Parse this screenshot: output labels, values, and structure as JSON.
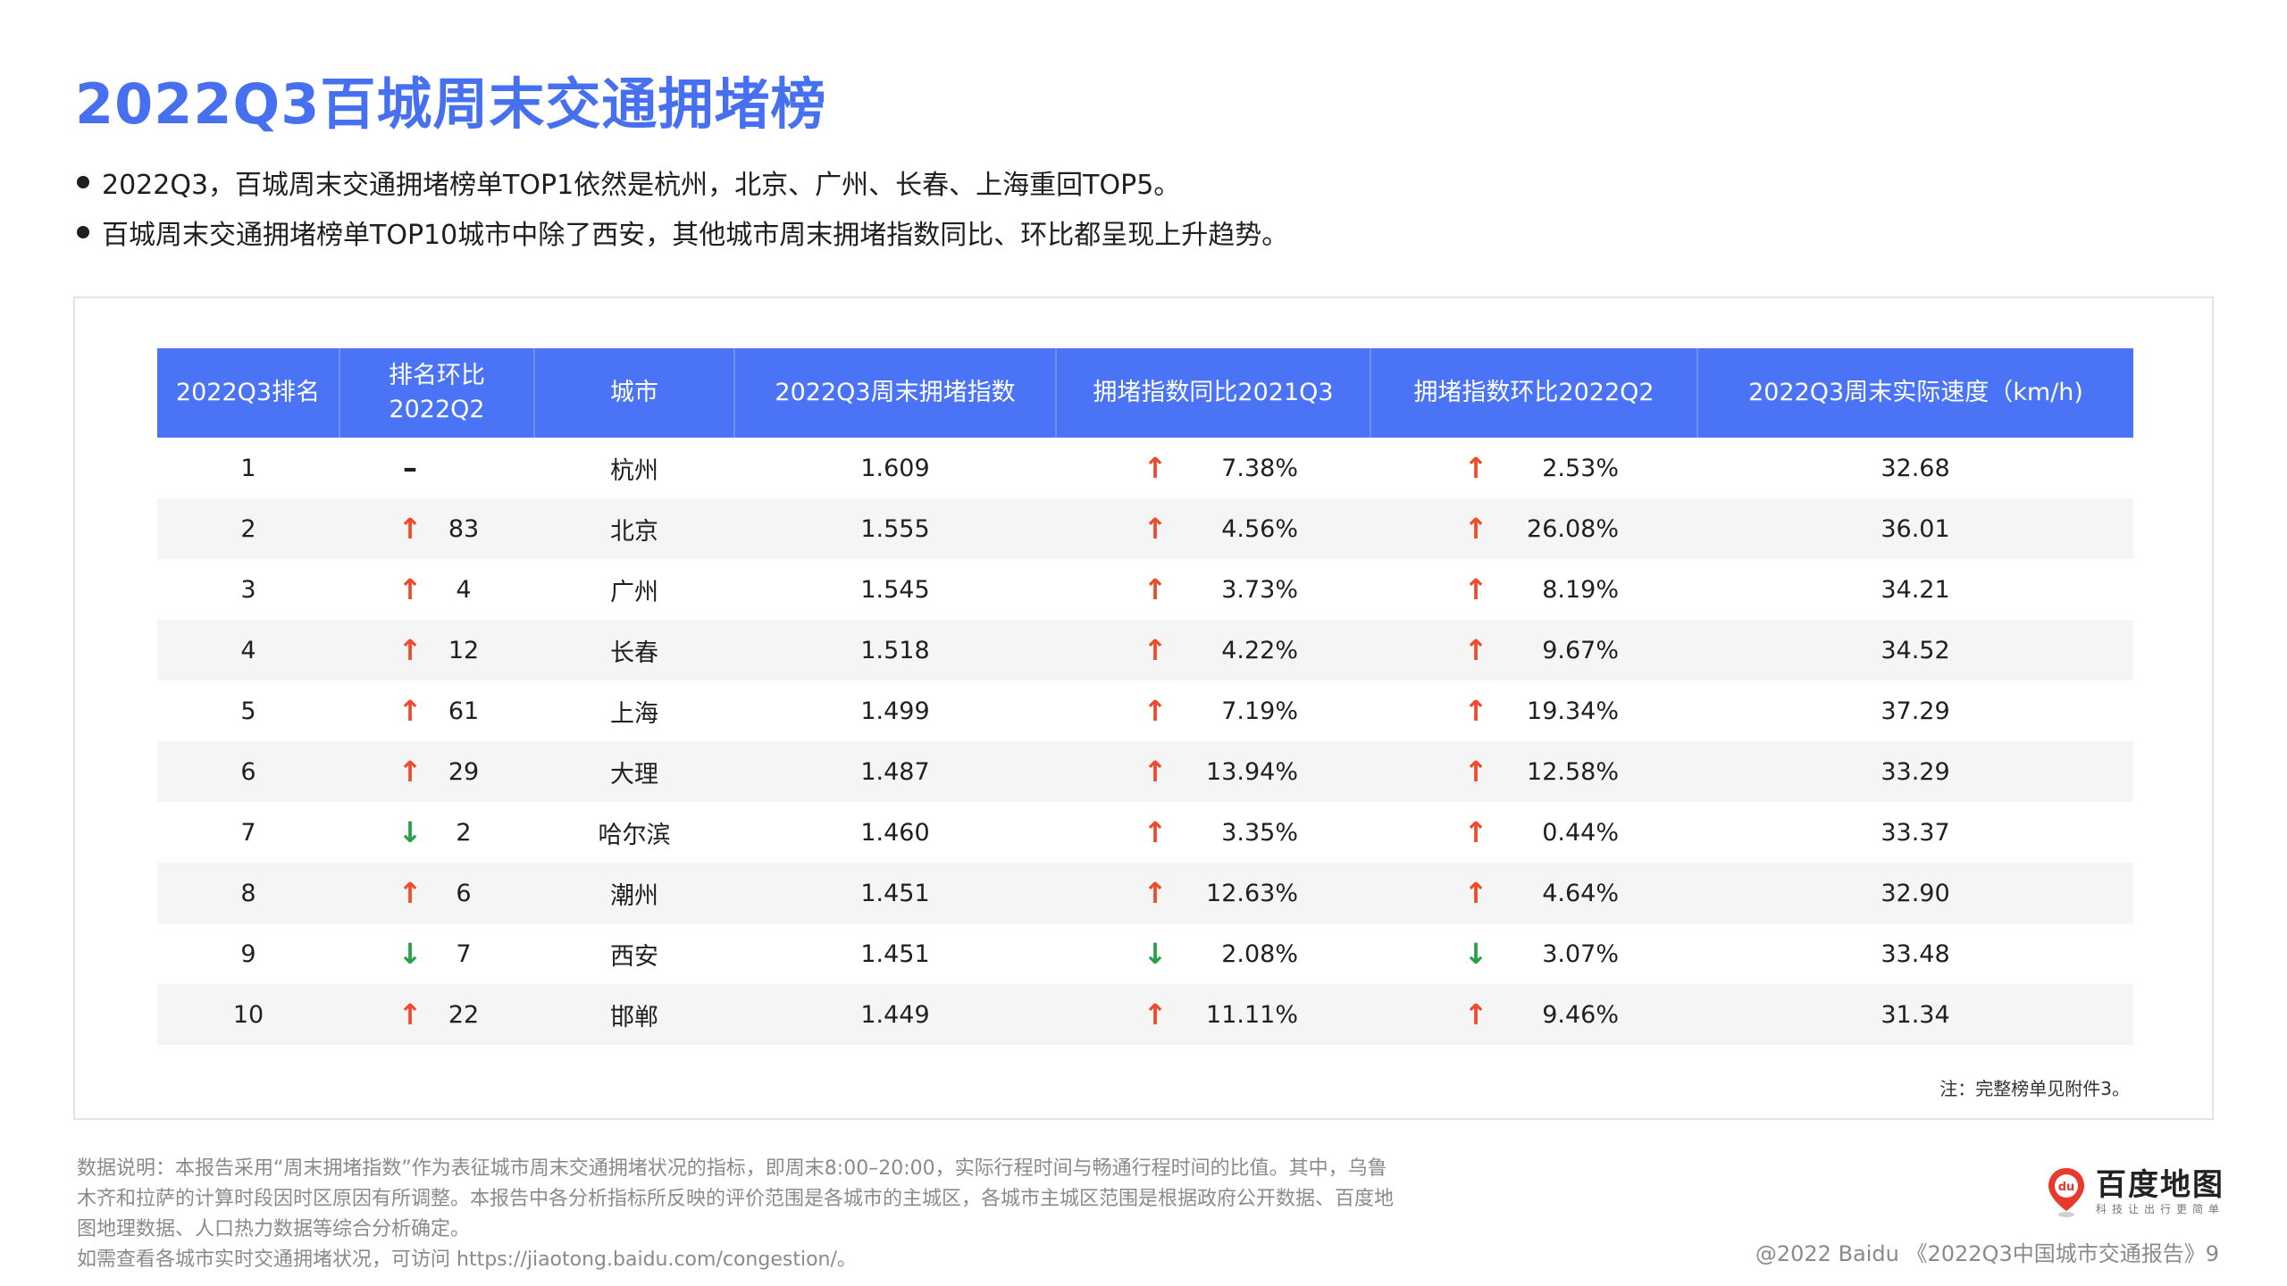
{
  "title": "2022Q3百城周末交通拥堵榜",
  "bullets": [
    "2022Q3，百城周末交通拥堵榜单TOP1依然是杭州，北京、广州、长春、上海重回TOP5。",
    "百城周末交通拥堵榜单TOP10城市中除了西安，其他城市周末拥堵指数同比、环比都呈现上升趋势。"
  ],
  "table": {
    "headers": {
      "rank": "2022Q3排名",
      "rank_change_line1": "排名环比",
      "rank_change_line2": "2022Q2",
      "city": "城市",
      "index": "2022Q3周末拥堵指数",
      "yoy": "拥堵指数同比2021Q3",
      "qoq": "拥堵指数环比2022Q2",
      "speed": "2022Q3周末实际速度（km/h)"
    },
    "rows": [
      {
        "rank": "1",
        "rank_dir": "none",
        "rank_dir_symbol": "–",
        "rank_change": "",
        "city": "杭州",
        "index": "1.609",
        "yoy_dir": "up",
        "yoy_symbol": "↑",
        "yoy": "7.38%",
        "qoq_dir": "up",
        "qoq_symbol": "↑",
        "qoq": "2.53%",
        "speed": "32.68"
      },
      {
        "rank": "2",
        "rank_dir": "up",
        "rank_dir_symbol": "↑",
        "rank_change": "83",
        "city": "北京",
        "index": "1.555",
        "yoy_dir": "up",
        "yoy_symbol": "↑",
        "yoy": "4.56%",
        "qoq_dir": "up",
        "qoq_symbol": "↑",
        "qoq": "26.08%",
        "speed": "36.01"
      },
      {
        "rank": "3",
        "rank_dir": "up",
        "rank_dir_symbol": "↑",
        "rank_change": "4",
        "city": "广州",
        "index": "1.545",
        "yoy_dir": "up",
        "yoy_symbol": "↑",
        "yoy": "3.73%",
        "qoq_dir": "up",
        "qoq_symbol": "↑",
        "qoq": "8.19%",
        "speed": "34.21"
      },
      {
        "rank": "4",
        "rank_dir": "up",
        "rank_dir_symbol": "↑",
        "rank_change": "12",
        "city": "长春",
        "index": "1.518",
        "yoy_dir": "up",
        "yoy_symbol": "↑",
        "yoy": "4.22%",
        "qoq_dir": "up",
        "qoq_symbol": "↑",
        "qoq": "9.67%",
        "speed": "34.52"
      },
      {
        "rank": "5",
        "rank_dir": "up",
        "rank_dir_symbol": "↑",
        "rank_change": "61",
        "city": "上海",
        "index": "1.499",
        "yoy_dir": "up",
        "yoy_symbol": "↑",
        "yoy": "7.19%",
        "qoq_dir": "up",
        "qoq_symbol": "↑",
        "qoq": "19.34%",
        "speed": "37.29"
      },
      {
        "rank": "6",
        "rank_dir": "up",
        "rank_dir_symbol": "↑",
        "rank_change": "29",
        "city": "大理",
        "index": "1.487",
        "yoy_dir": "up",
        "yoy_symbol": "↑",
        "yoy": "13.94%",
        "qoq_dir": "up",
        "qoq_symbol": "↑",
        "qoq": "12.58%",
        "speed": "33.29"
      },
      {
        "rank": "7",
        "rank_dir": "down",
        "rank_dir_symbol": "↓",
        "rank_change": "2",
        "city": "哈尔滨",
        "index": "1.460",
        "yoy_dir": "up",
        "yoy_symbol": "↑",
        "yoy": "3.35%",
        "qoq_dir": "up",
        "qoq_symbol": "↑",
        "qoq": "0.44%",
        "speed": "33.37"
      },
      {
        "rank": "8",
        "rank_dir": "up",
        "rank_dir_symbol": "↑",
        "rank_change": "6",
        "city": "潮州",
        "index": "1.451",
        "yoy_dir": "up",
        "yoy_symbol": "↑",
        "yoy": "12.63%",
        "qoq_dir": "up",
        "qoq_symbol": "↑",
        "qoq": "4.64%",
        "speed": "32.90"
      },
      {
        "rank": "9",
        "rank_dir": "down",
        "rank_dir_symbol": "↓",
        "rank_change": "7",
        "city": "西安",
        "index": "1.451",
        "yoy_dir": "down",
        "yoy_symbol": "↓",
        "yoy": "2.08%",
        "qoq_dir": "down",
        "qoq_symbol": "↓",
        "qoq": "3.07%",
        "speed": "33.48"
      },
      {
        "rank": "10",
        "rank_dir": "up",
        "rank_dir_symbol": "↑",
        "rank_change": "22",
        "city": "邯郸",
        "index": "1.449",
        "yoy_dir": "up",
        "yoy_symbol": "↑",
        "yoy": "11.11%",
        "qoq_dir": "up",
        "qoq_symbol": "↑",
        "qoq": "9.46%",
        "speed": "31.34"
      }
    ],
    "note": "注：完整榜单见附件3。"
  },
  "footnote": {
    "lines": [
      "数据说明：本报告采用“周末拥堵指数”作为表征城市周末交通拥堵状况的指标，即周末8:00–20:00，实际行程时间与畅通行程时间的比值。其中，乌鲁",
      "木齐和拉萨的计算时段因时区原因有所调整。本报告中各分析指标所反映的评价范围是各城市的主城区，各城市主城区范围是根据政府公开数据、百度地",
      "图地理数据、人口热力数据等综合分析确定。",
      "如需查看各城市实时交通拥堵状况，可访问 https://jiaotong.baidu.com/congestion/。"
    ]
  },
  "brand": {
    "name": "百度地图",
    "slogan": "科技让出行更简单",
    "pin_text": "du",
    "colors": {
      "pin": "#e8392c",
      "accent": "#4a74f5",
      "up": "#f04a2a",
      "down": "#26a146"
    }
  },
  "copyright": "@2022 Baidu 《2022Q3中国城市交通报告》9"
}
